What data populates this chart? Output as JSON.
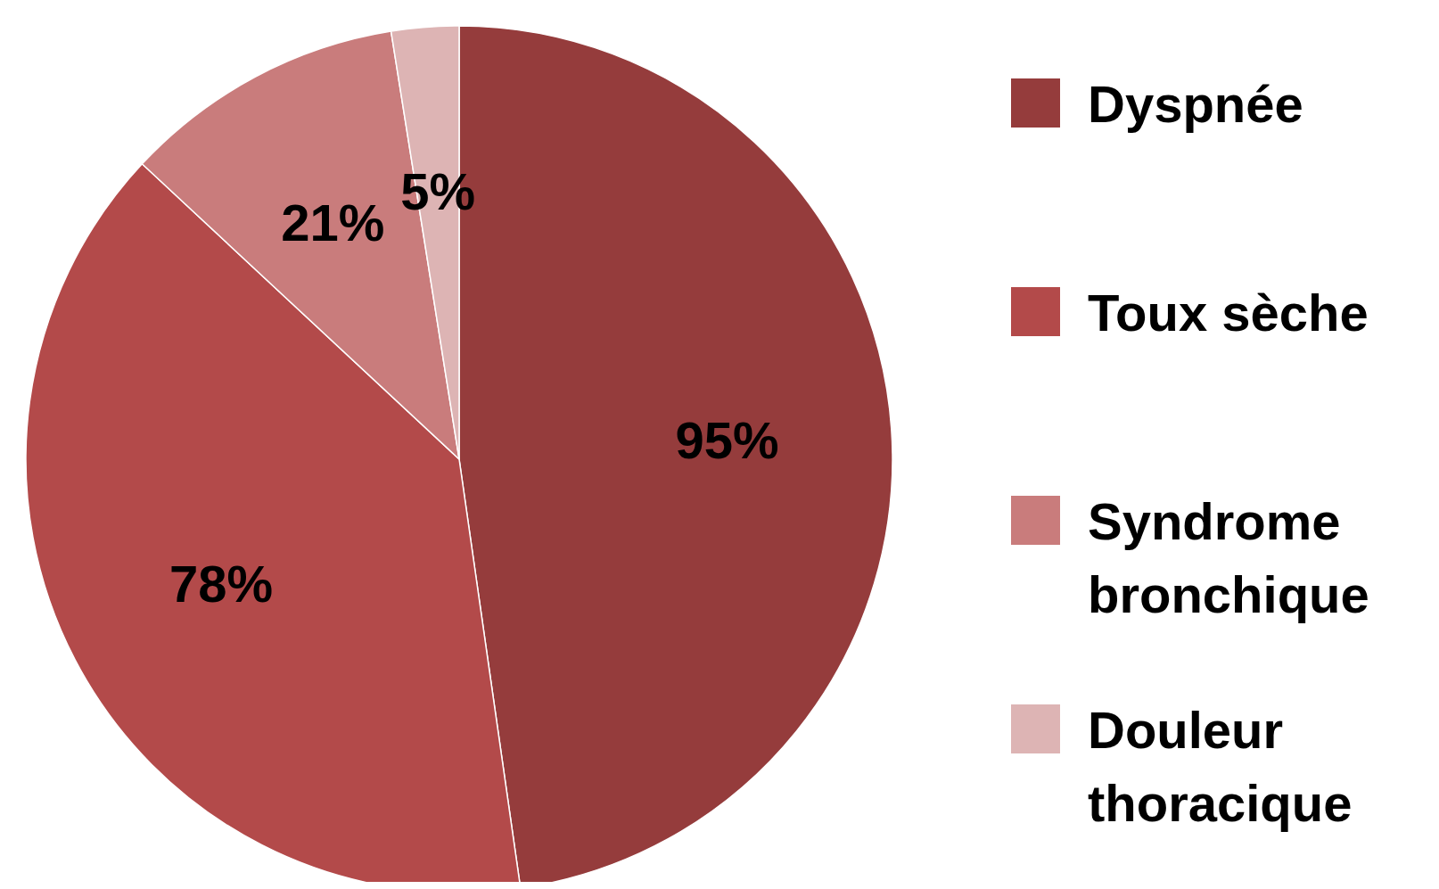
{
  "chart_data": {
    "type": "pie",
    "categories": [
      "Dyspnée",
      "Toux sèche",
      "Syndrome bronchique",
      "Douleur thoracique"
    ],
    "values": [
      95,
      78,
      21,
      5
    ],
    "colors": [
      "#953c3c",
      "#b34a4a",
      "#c97c7c",
      "#ddb4b4"
    ],
    "value_labels": [
      "95%",
      "78%",
      "21%",
      "5%"
    ],
    "legend": "right"
  }
}
